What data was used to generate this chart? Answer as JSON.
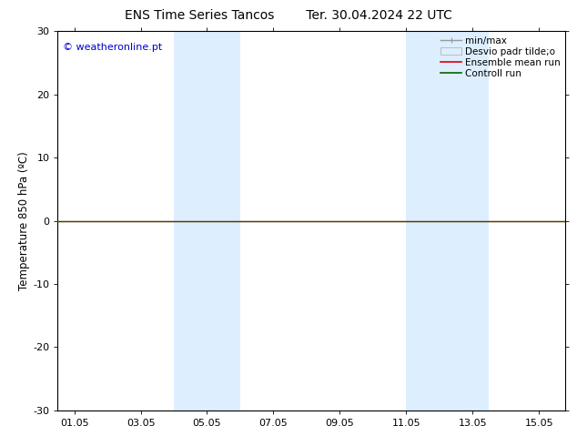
{
  "title_left": "ENS Time Series Tancos",
  "title_right": "Ter. 30.04.2024 22 UTC",
  "ylabel": "Temperature 850 hPa (ºC)",
  "watermark": "© weatheronline.pt",
  "ylim": [
    -30,
    30
  ],
  "yticks": [
    -30,
    -20,
    -10,
    0,
    10,
    20,
    30
  ],
  "xtick_labels": [
    "01.05",
    "03.05",
    "05.05",
    "07.05",
    "09.05",
    "11.05",
    "13.05",
    "15.05"
  ],
  "xtick_positions": [
    0,
    2,
    4,
    6,
    8,
    10,
    12,
    14
  ],
  "xlim": [
    -0.5,
    14.8
  ],
  "shade_regions": [
    {
      "x_start": 3.0,
      "x_end": 5.0
    },
    {
      "x_start": 10.0,
      "x_end": 12.5
    }
  ],
  "shade_color": "#ddeeff",
  "data_y_value": 0.0,
  "line_color_red": "#dd0000",
  "line_color_green": "#006400",
  "line_color_gray": "#999999",
  "legend_labels": [
    "min/max",
    "Desvio padr tilde;o",
    "Ensemble mean run",
    "Controll run"
  ],
  "bg_color": "#ffffff",
  "title_fontsize": 10,
  "tick_fontsize": 8,
  "ylabel_fontsize": 8.5,
  "watermark_fontsize": 8,
  "watermark_color": "#0000cc",
  "legend_fontsize": 7.5
}
